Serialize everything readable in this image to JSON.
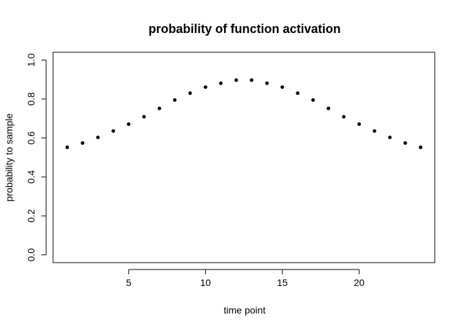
{
  "chart_data": {
    "type": "scatter",
    "title": "probability of function activation",
    "xlabel": "time point",
    "ylabel": "probability to sample",
    "x": [
      1,
      2,
      3,
      4,
      5,
      6,
      7,
      8,
      9,
      10,
      11,
      12,
      13,
      14,
      15,
      16,
      17,
      18,
      19,
      20,
      21,
      22,
      23,
      24
    ],
    "y": [
      0.552,
      0.574,
      0.603,
      0.636,
      0.671,
      0.709,
      0.752,
      0.795,
      0.83,
      0.861,
      0.881,
      0.897,
      0.897,
      0.881,
      0.861,
      0.83,
      0.795,
      0.752,
      0.709,
      0.671,
      0.636,
      0.603,
      0.574,
      0.552
    ],
    "xlim": [
      0.08,
      24.92
    ],
    "ylim": [
      -0.04,
      1.04
    ],
    "x_ticks": [
      5,
      10,
      15,
      20
    ],
    "y_ticks": [
      0.0,
      0.2,
      0.4,
      0.6,
      0.8,
      1.0
    ],
    "x_tick_labels": [
      "5",
      "10",
      "15",
      "20"
    ],
    "y_tick_labels": [
      "0.0",
      "0.2",
      "0.4",
      "0.6",
      "0.8",
      "1.0"
    ],
    "grid": false,
    "point_color": "#000000"
  }
}
